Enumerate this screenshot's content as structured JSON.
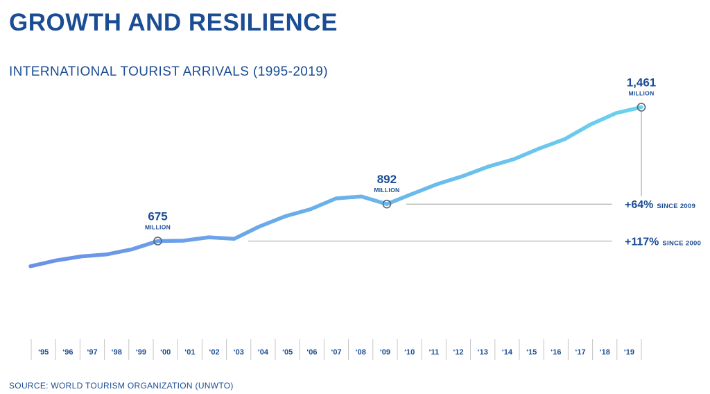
{
  "colors": {
    "title": "#1a4d94",
    "line_start": "#6b90e8",
    "line_end": "#6ad2ee",
    "guide": "#9a9a9a",
    "marker": "#5b6470"
  },
  "chart_data": {
    "type": "line",
    "title": "GROWTH AND RESILIENCE",
    "subtitle": "INTERNATIONAL TOURIST ARRIVALS (1995-2019)",
    "source": "SOURCE: WORLD TOURISM ORGANIZATION (UNWTO)",
    "xlabel": "",
    "ylabel": "",
    "unit": "million",
    "ylim": [
      400,
      1500
    ],
    "grid": false,
    "categories": [
      "'95",
      "'96",
      "'97",
      "'98",
      "'99",
      "'00",
      "'01",
      "'02",
      "'03",
      "'04",
      "'05",
      "'06",
      "'07",
      "'08",
      "'09",
      "'10",
      "'11",
      "'12",
      "'13",
      "'14",
      "'15",
      "'16",
      "'17",
      "'18",
      "'19"
    ],
    "series": [
      {
        "name": "International tourist arrivals",
        "values": [
          527,
          561,
          585,
          597,
          627,
          675,
          677,
          697,
          688,
          761,
          820,
          862,
          925,
          937,
          892,
          952,
          1010,
          1057,
          1113,
          1156,
          1219,
          1274,
          1359,
          1426,
          1461
        ]
      }
    ],
    "highlights": [
      {
        "index": 5,
        "value": "675",
        "unit": "MILLION"
      },
      {
        "index": 14,
        "value": "892",
        "unit": "MILLION"
      },
      {
        "index": 24,
        "value": "1,461",
        "unit": "MILLION"
      }
    ],
    "changes": [
      {
        "pct": "+64%",
        "since": "SINCE 2009",
        "from_index": 14
      },
      {
        "pct": "+117%",
        "since": "SINCE 2000",
        "from_index": 5
      }
    ]
  }
}
